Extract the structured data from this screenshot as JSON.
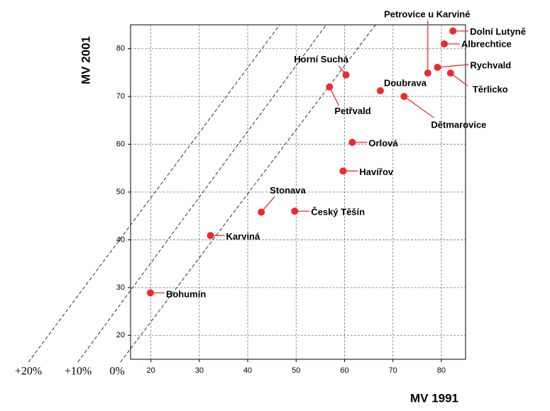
{
  "chart_data": {
    "type": "scatter",
    "x_label": "MV 1991",
    "y_label": "MV 2001",
    "xlim": [
      15.8,
      85
    ],
    "ylim": [
      15,
      85
    ],
    "xticks": [
      20,
      30,
      40,
      50,
      60,
      70,
      80
    ],
    "yticks": [
      20,
      30,
      40,
      50,
      60,
      70,
      80
    ],
    "grid": true,
    "color": "#ee2b2b",
    "labels": [
      "Dolní Lutyně",
      "Albrechtice",
      "Petrovice u Karviné",
      "Rychvald",
      "Těrlicko",
      "Horní Suchá",
      "Petřvald",
      "Doubrava",
      "Dětmarovice",
      "Orlová",
      "Havířov",
      "Stonava",
      "Český Těšín",
      "Karviná",
      "Bohumín"
    ],
    "x": [
      82.4,
      80.6,
      77.2,
      79.2,
      81.9,
      60.3,
      56.9,
      67.4,
      72.3,
      61.6,
      59.7,
      42.8,
      49.7,
      32.3,
      19.9
    ],
    "values": [
      83.7,
      81.0,
      74.9,
      76.1,
      74.9,
      74.5,
      72.0,
      71.2,
      70.0,
      60.4,
      54.4,
      45.8,
      46.0,
      40.9,
      28.9
    ],
    "reference_lines": [
      {
        "label": "+20%",
        "x": [
          -5.3,
          46.6
        ],
        "y": [
          14.4,
          85
        ]
      },
      {
        "label": "+10%",
        "x": [
          4.9,
          56.2
        ],
        "y": [
          14.4,
          85
        ]
      },
      {
        "label": "0%",
        "x": [
          13.7,
          66.4
        ],
        "y": [
          14.4,
          85
        ]
      }
    ]
  }
}
